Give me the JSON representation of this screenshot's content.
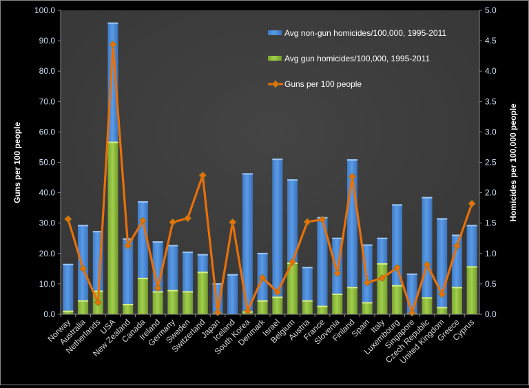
{
  "chart_data": {
    "type": "bar+line",
    "categories": [
      "Norway",
      "Australia",
      "Netherlands",
      "USA",
      "New Zealand",
      "Canada",
      "Ireland",
      "Germany",
      "Sweden",
      "Switzerland",
      "Japan",
      "Iceland",
      "South Korea",
      "Denmark",
      "Israel",
      "Belgium",
      "Austria",
      "France",
      "Slovenia",
      "Finland",
      "Spain",
      "Italy",
      "Luxembourg",
      "Singapore",
      "Czech Republic",
      "United Kingdom",
      "Greece",
      "Cyprus"
    ],
    "series": [
      {
        "name": "Avg non-gun homicides/100,000, 1995-2011",
        "kind": "stacked-bar",
        "axis": "right",
        "color": "#4f8fdc",
        "values": [
          0.77,
          1.24,
          0.98,
          1.96,
          1.08,
          1.26,
          0.82,
          0.74,
          0.65,
          0.29,
          0.5,
          0.66,
          2.27,
          0.78,
          2.27,
          1.37,
          0.55,
          1.46,
          0.92,
          2.1,
          0.95,
          0.42,
          1.33,
          0.66,
          1.65,
          1.46,
          0.86,
          0.68
        ]
      },
      {
        "name": "Avg gun homicides/100,000, 1995-2011",
        "kind": "stacked-bar",
        "axis": "right",
        "color": "#8fbc3a",
        "values": [
          0.06,
          0.23,
          0.39,
          2.84,
          0.17,
          0.6,
          0.38,
          0.4,
          0.38,
          0.7,
          0.01,
          0.0,
          0.05,
          0.23,
          0.29,
          0.85,
          0.23,
          0.14,
          0.34,
          0.45,
          0.2,
          0.84,
          0.48,
          0.01,
          0.28,
          0.12,
          0.45,
          0.79
        ]
      },
      {
        "name": "Guns per 100 people",
        "kind": "line",
        "axis": "left",
        "color": "#e8700a",
        "values": [
          31.3,
          15.0,
          3.9,
          88.8,
          22.6,
          30.8,
          8.6,
          30.3,
          31.6,
          45.7,
          0.6,
          30.3,
          1.1,
          12.0,
          7.3,
          17.2,
          30.4,
          31.2,
          13.5,
          45.3,
          10.4,
          11.9,
          15.3,
          0.5,
          16.3,
          6.6,
          22.5,
          36.4
        ]
      }
    ],
    "ylabel_left": "Guns per 100 people",
    "ylabel_right": "Homicides per 100,000 people",
    "ylim_left": [
      0,
      100
    ],
    "ylim_right": [
      0,
      5
    ],
    "yticks_left": [
      "0.0",
      "10.0",
      "20.0",
      "30.0",
      "40.0",
      "50.0",
      "60.0",
      "70.0",
      "80.0",
      "90.0",
      "100.0"
    ],
    "yticks_right": [
      "0.0",
      "0.5",
      "1.0",
      "1.5",
      "2.0",
      "2.5",
      "3.0",
      "3.5",
      "4.0",
      "4.5",
      "5.0"
    ],
    "legend": "top-right inside",
    "grid": false,
    "plot_background": "#3c3c3c"
  }
}
